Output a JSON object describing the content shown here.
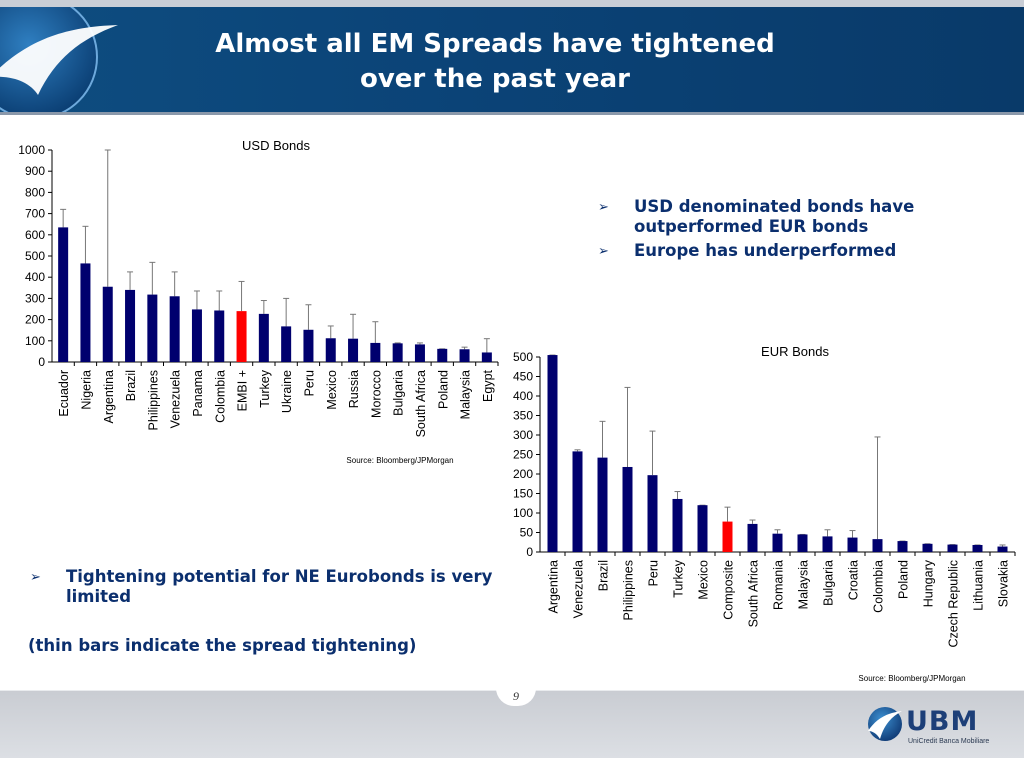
{
  "slide": {
    "title_line1": "Almost all EM Spreads have tightened",
    "title_line2": "over the past year",
    "bullets_right": [
      "USD denominated bonds have outperformed EUR bonds",
      "Europe has underperformed"
    ],
    "bullets_left": [
      "Tightening potential for NE Eurobonds is very limited"
    ],
    "note": "(thin bars indicate the spread tightening)",
    "page_number": "9",
    "logo_text": "UBM",
    "logo_subtitle": "UniCredit Banca Mobiliare",
    "bullet_glyph": "➢",
    "colors": {
      "header_bg": "#0b4377",
      "bar": "#00006e",
      "highlight_bar": "#ff0000",
      "text_accent": "#0b2f6e"
    }
  },
  "chart_data": [
    {
      "type": "bar",
      "title": "USD Bonds",
      "source": "Source: Bloomberg/JPMorgan",
      "categories": [
        "Ecuador",
        "Nigeria",
        "Argentina",
        "Brazil",
        "Philippines",
        "Venezuela",
        "Panama",
        "Colombia",
        "EMBI +",
        "Turkey",
        "Ukraine",
        "Peru",
        "Mexico",
        "Russia",
        "Morocco",
        "Bulgaria",
        "South Africa",
        "Poland",
        "Malaysia",
        "Egypt"
      ],
      "series": [
        {
          "values": [
            635,
            465,
            355,
            340,
            318,
            310,
            248,
            243,
            240,
            227,
            168,
            152,
            112,
            110,
            90,
            88,
            83,
            62,
            60,
            45
          ]
        },
        {
          "values": [
            720,
            640,
            1000,
            425,
            470,
            425,
            335,
            335,
            380,
            290,
            300,
            270,
            170,
            225,
            190,
            90,
            90,
            62,
            70,
            110
          ]
        }
      ],
      "highlight_category": "EMBI +",
      "ylim": [
        0,
        1000
      ],
      "yticks": [
        0,
        100,
        200,
        300,
        400,
        500,
        600,
        700,
        800,
        900,
        1000
      ],
      "grid": false,
      "legend": "none"
    },
    {
      "type": "bar",
      "title": "EUR Bonds",
      "source": "Source: Bloomberg/JPMorgan",
      "categories": [
        "Argentina",
        "Venezuela",
        "Brazil",
        "Philippines",
        "Peru",
        "Turkey",
        "Mexico",
        "Composite",
        "South Africa",
        "Romania",
        "Malaysia",
        "Bulgaria",
        "Croatia",
        "Colombia",
        "Poland",
        "Hungary",
        "Czech Republic",
        "Lithuania",
        "Slovakia"
      ],
      "series": [
        {
          "values": [
            505,
            258,
            242,
            218,
            197,
            136,
            120,
            78,
            72,
            47,
            45,
            40,
            37,
            33,
            28,
            21,
            19,
            18,
            14
          ]
        },
        {
          "values": [
            505,
            262,
            335,
            422,
            310,
            155,
            120,
            115,
            82,
            57,
            45,
            57,
            55,
            295,
            28,
            21,
            19,
            18,
            18
          ]
        }
      ],
      "highlight_category": "Composite",
      "ylim": [
        0,
        500
      ],
      "yticks": [
        0,
        50,
        100,
        150,
        200,
        250,
        300,
        350,
        400,
        450,
        500
      ],
      "grid": false,
      "legend": "none"
    }
  ]
}
